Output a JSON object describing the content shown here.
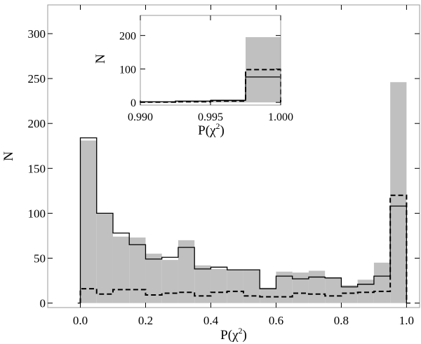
{
  "chart_data": [
    {
      "type": "histogram",
      "xlabel_main": "P(χ",
      "xlabel_sup": "2",
      "xlabel_close": ")",
      "ylabel": "N",
      "xlim": [
        -0.1,
        1.04
      ],
      "ylim": [
        -5,
        332
      ],
      "x_ticks": [
        0.0,
        0.2,
        0.4,
        0.6,
        0.8,
        1.0
      ],
      "x_tick_labels": [
        "0.0",
        "0.2",
        "0.4",
        "0.6",
        "0.8",
        "1.0"
      ],
      "y_ticks": [
        0,
        50,
        100,
        150,
        200,
        250,
        300
      ],
      "y_tick_labels": [
        "0",
        "50",
        "100",
        "150",
        "200",
        "250",
        "300"
      ],
      "bin_width": 0.05,
      "bin_starts": [
        0.0,
        0.05,
        0.1,
        0.15,
        0.2,
        0.25,
        0.3,
        0.35,
        0.4,
        0.45,
        0.5,
        0.55,
        0.6,
        0.65,
        0.7,
        0.75,
        0.8,
        0.85,
        0.9,
        0.95
      ],
      "series": [
        {
          "style": "filled-gray",
          "color": "#c0c0c0",
          "values": [
            181,
            100,
            74,
            73,
            55,
            48,
            70,
            42,
            38,
            37,
            37,
            17,
            35,
            34,
            36,
            28,
            20,
            26,
            45,
            246
          ]
        },
        {
          "style": "solid-step",
          "color": "#000000",
          "values": [
            184,
            100,
            78,
            65,
            49,
            51,
            62,
            38,
            40,
            37,
            37,
            16,
            30,
            27,
            29,
            28,
            18,
            21,
            30,
            108
          ]
        },
        {
          "style": "dashed-step",
          "color": "#000000",
          "values": [
            16,
            10,
            15,
            15,
            9,
            11,
            12,
            8,
            12,
            13,
            8,
            7,
            7,
            11,
            10,
            8,
            11,
            12,
            13,
            120
          ]
        }
      ]
    },
    {
      "type": "histogram",
      "role": "inset",
      "xlabel_main": "P(χ",
      "xlabel_sup": "2",
      "xlabel_close": ")",
      "ylabel": "N",
      "xlim": [
        0.99,
        1.0
      ],
      "ylim": [
        -8,
        260
      ],
      "x_ticks": [
        0.99,
        0.995,
        1.0
      ],
      "x_tick_labels": [
        "0.990",
        "0.995",
        "1.000"
      ],
      "y_ticks": [
        0,
        100,
        200
      ],
      "y_tick_labels": [
        "0",
        "100",
        "200"
      ],
      "bin_width": 0.0025,
      "bin_starts": [
        0.99,
        0.9925,
        0.995,
        0.9975
      ],
      "series": [
        {
          "style": "filled-gray",
          "color": "#c0c0c0",
          "values": [
            3,
            5,
            9,
            195
          ]
        },
        {
          "style": "solid-step",
          "color": "#000000",
          "values": [
            2,
            4,
            6,
            76
          ]
        },
        {
          "style": "dashed-step",
          "color": "#000000",
          "values": [
            1,
            2,
            4,
            98
          ]
        }
      ]
    }
  ]
}
